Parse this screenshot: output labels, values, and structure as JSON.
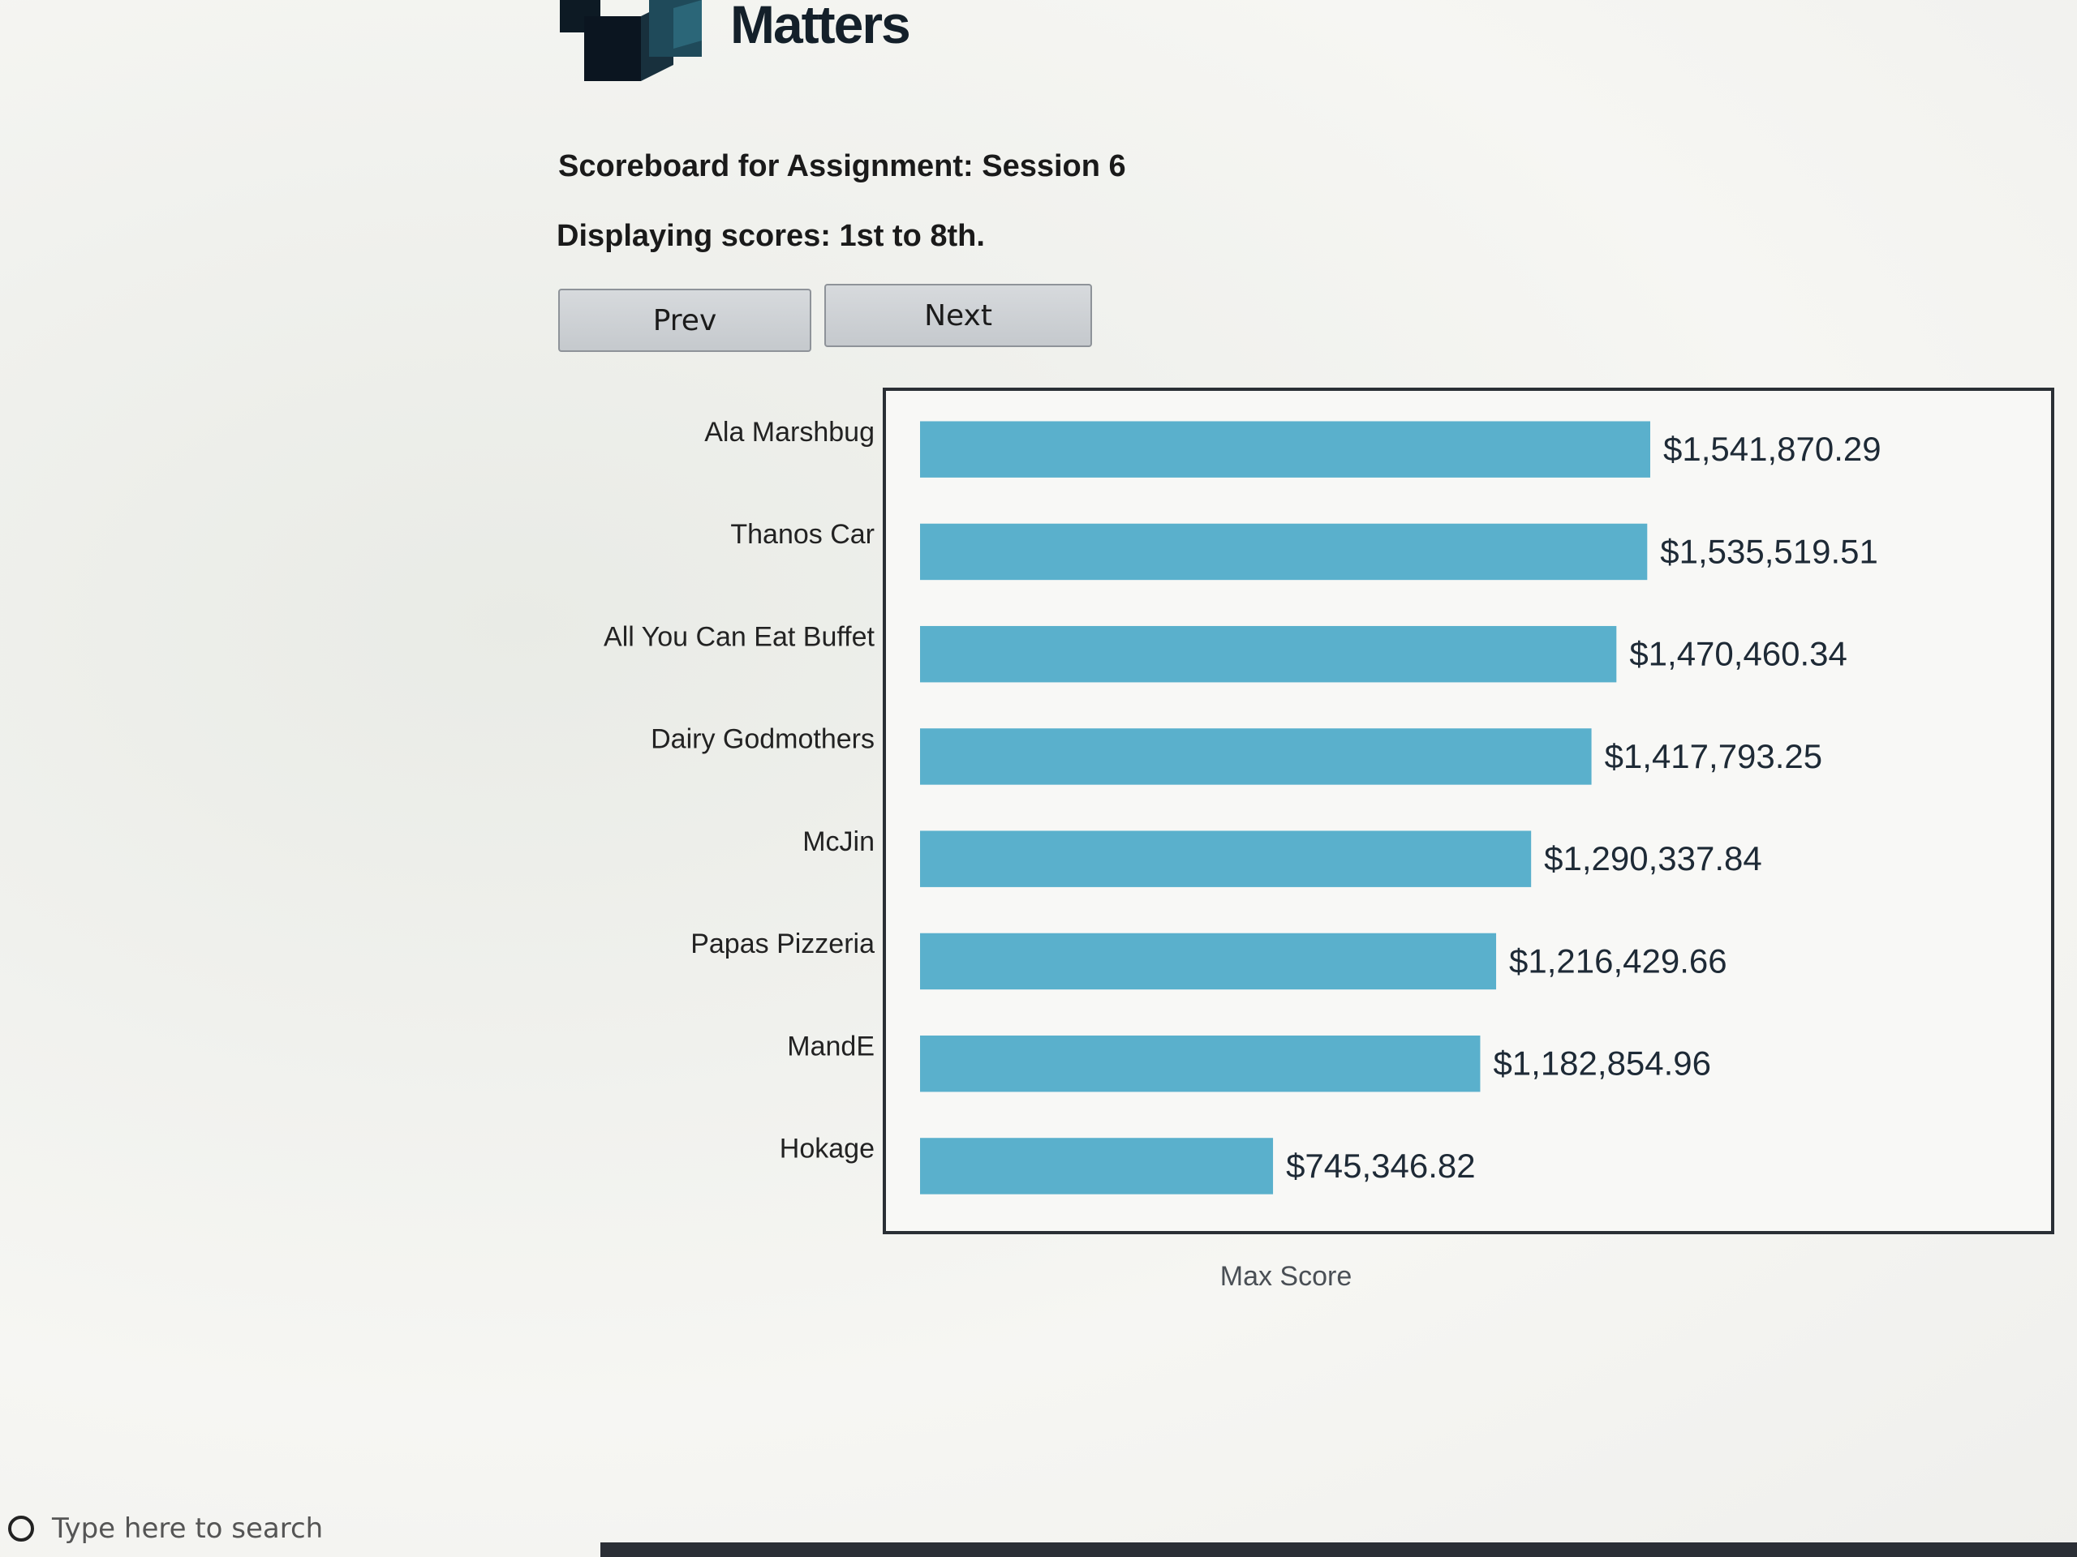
{
  "logo": {
    "text": "Matters"
  },
  "scoreboard": {
    "title": "Scoreboard for Assignment: Session 6",
    "range_text": "Displaying scores: 1st to 8th.",
    "prev_label": "Prev",
    "next_label": "Next"
  },
  "chart_data": {
    "type": "bar",
    "orientation": "horizontal",
    "categories": [
      "Ala Marshbug",
      "Thanos Car",
      "All You Can Eat Buffet",
      "Dairy Godmothers",
      "McJin",
      "Papas Pizzeria",
      "MandE",
      "Hokage"
    ],
    "values": [
      1541870.29,
      1535519.51,
      1470460.34,
      1417793.25,
      1290337.84,
      1216429.66,
      1182854.96,
      745346.82
    ],
    "value_labels": [
      "$1,541,870.29",
      "$1,535,519.51",
      "$1,470,460.34",
      "$1,417,793.25",
      "$1,290,337.84",
      "$1,216,429.66",
      "$1,182,854.96",
      "$745,346.82"
    ],
    "xlabel": "Max Score",
    "bar_color": "#5ab0cc"
  },
  "taskbar": {
    "search_placeholder": "Type here to search"
  }
}
